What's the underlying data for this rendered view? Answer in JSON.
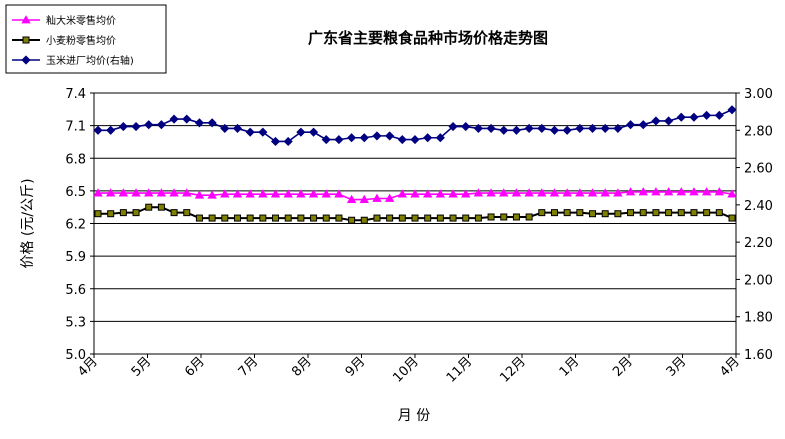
{
  "chart_data": {
    "type": "line",
    "title": "广东省主要粮食品种市场价格走势图",
    "xlabel": "月  份",
    "ylabel": "价格 (元/公斤)",
    "ylim": [
      5.0,
      7.4
    ],
    "y2lim": [
      1.6,
      3.0
    ],
    "yticks": [
      "5.0",
      "5.3",
      "5.6",
      "5.9",
      "6.2",
      "6.5",
      "6.8",
      "7.1",
      "7.4"
    ],
    "y2ticks": [
      "1.60",
      "1.80",
      "2.00",
      "2.20",
      "2.40",
      "2.60",
      "2.80",
      "3.00"
    ],
    "month_labels": [
      "4月",
      "5月",
      "6月",
      "7月",
      "8月",
      "9月",
      "10月",
      "11月",
      "12月",
      "1月",
      "2月",
      "3月",
      "4月"
    ],
    "grid": true,
    "legend_position": "top-left",
    "series": [
      {
        "name": "籼大米零售均价",
        "axis": "left",
        "color": "#ff00ff",
        "marker": "triangle",
        "values": [
          6.48,
          6.48,
          6.48,
          6.48,
          6.48,
          6.48,
          6.48,
          6.48,
          6.46,
          6.46,
          6.47,
          6.47,
          6.47,
          6.47,
          6.47,
          6.47,
          6.47,
          6.47,
          6.47,
          6.47,
          6.42,
          6.42,
          6.43,
          6.43,
          6.47,
          6.47,
          6.47,
          6.47,
          6.47,
          6.47,
          6.48,
          6.48,
          6.48,
          6.48,
          6.48,
          6.48,
          6.48,
          6.48,
          6.48,
          6.48,
          6.48,
          6.48,
          6.49,
          6.49,
          6.49,
          6.49,
          6.49,
          6.49,
          6.49,
          6.49,
          6.47
        ]
      },
      {
        "name": "小麦粉零售均价",
        "axis": "left",
        "color": "#000000",
        "marker_fill": "#808000",
        "marker": "square",
        "values": [
          6.29,
          6.29,
          6.3,
          6.3,
          6.35,
          6.35,
          6.3,
          6.3,
          6.25,
          6.25,
          6.25,
          6.25,
          6.25,
          6.25,
          6.25,
          6.25,
          6.25,
          6.25,
          6.25,
          6.25,
          6.23,
          6.23,
          6.25,
          6.25,
          6.25,
          6.25,
          6.25,
          6.25,
          6.25,
          6.25,
          6.25,
          6.26,
          6.26,
          6.26,
          6.26,
          6.3,
          6.3,
          6.3,
          6.3,
          6.29,
          6.29,
          6.29,
          6.3,
          6.3,
          6.3,
          6.3,
          6.3,
          6.3,
          6.3,
          6.3,
          6.25
        ]
      },
      {
        "name": "玉米进厂均价(右轴)",
        "axis": "right",
        "color": "#000080",
        "marker": "diamond",
        "values": [
          2.8,
          2.8,
          2.82,
          2.82,
          2.83,
          2.83,
          2.86,
          2.86,
          2.84,
          2.84,
          2.81,
          2.81,
          2.79,
          2.79,
          2.74,
          2.74,
          2.79,
          2.79,
          2.75,
          2.75,
          2.76,
          2.76,
          2.77,
          2.77,
          2.75,
          2.75,
          2.76,
          2.76,
          2.82,
          2.82,
          2.81,
          2.81,
          2.8,
          2.8,
          2.81,
          2.81,
          2.8,
          2.8,
          2.81,
          2.81,
          2.81,
          2.81,
          2.83,
          2.83,
          2.85,
          2.85,
          2.87,
          2.87,
          2.88,
          2.88,
          2.91
        ]
      }
    ]
  }
}
